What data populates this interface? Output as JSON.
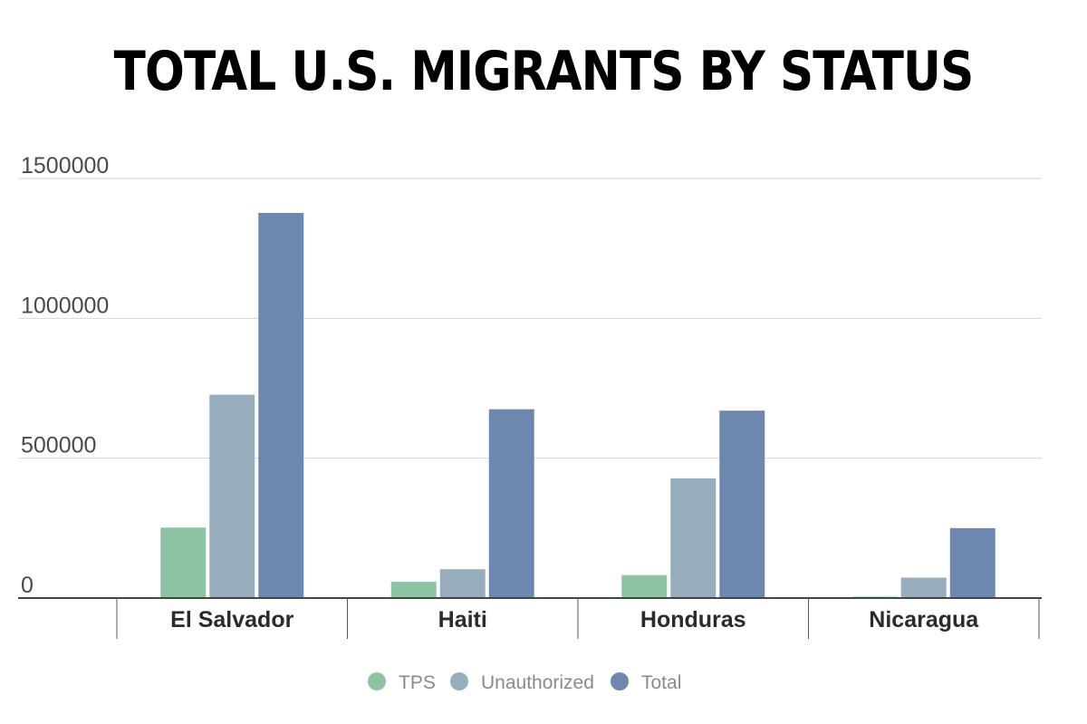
{
  "chart_data": {
    "type": "bar",
    "title": "TOTAL U.S. MIGRANTS BY STATUS",
    "xlabel": "",
    "ylabel": "",
    "ylim": [
      0,
      1500000
    ],
    "yticks": [
      0,
      500000,
      1000000,
      1500000
    ],
    "grid": true,
    "legend_position": "bottom",
    "categories": [
      "El Salvador",
      "Haiti",
      "Honduras",
      "Nicaragua"
    ],
    "series": [
      {
        "name": "TPS",
        "color": "#8ec4a5",
        "values": [
          252000,
          58000,
          82000,
          5000
        ]
      },
      {
        "name": "Unauthorized",
        "color": "#97adbb",
        "values": [
          727000,
          103000,
          428000,
          73000
        ]
      },
      {
        "name": "Total",
        "color": "#6e87ae",
        "values": [
          1377000,
          675000,
          670000,
          250000
        ]
      }
    ]
  }
}
